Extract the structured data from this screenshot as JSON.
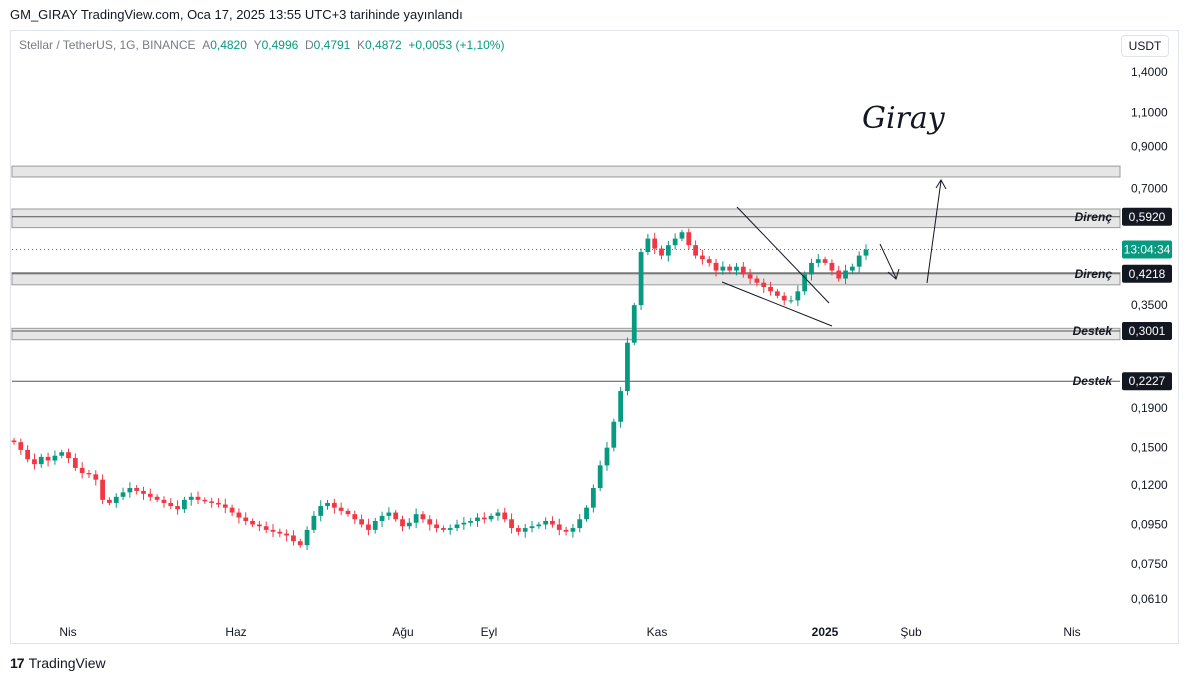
{
  "header": {
    "author": "GM_GIRAY",
    "site": "TradingView.com",
    "published": "Oca 17, 2025 13:55 UTC+3 tarihinde yayınlandı"
  },
  "legend": {
    "symbol": "Stellar / TetherUS, 1G, BINANCE",
    "o_label": "A",
    "o": "0,4820",
    "h_label": "Y",
    "h": "0,4996",
    "l_label": "D",
    "l": "0,4791",
    "c_label": "K",
    "c": "0,4872",
    "change": "+0,0053 (+1,10%)"
  },
  "currency_button": "USDT",
  "footer": {
    "brand": "TradingView",
    "logo": "tradingview-logo-icon"
  },
  "signature": "Giray",
  "colors": {
    "up": "#089981",
    "down": "#f23645",
    "zone": "#e6e6e6",
    "label_bg": "#131722",
    "countdown_bg": "#089981"
  },
  "chart_data": {
    "type": "candlestick",
    "symbol": "Stellar / TetherUS",
    "interval": "1G",
    "exchange": "BINANCE",
    "y_scale": "log",
    "ylim": [
      0.058,
      1.55
    ],
    "y_ticks": [
      {
        "value": 1.4,
        "label": "1,4000"
      },
      {
        "value": 1.1,
        "label": "1,1000"
      },
      {
        "value": 0.9,
        "label": "0,9000"
      },
      {
        "value": 0.7,
        "label": "0,7000"
      },
      {
        "value": 0.35,
        "label": "0,3500"
      },
      {
        "value": 0.19,
        "label": "0,1900"
      },
      {
        "value": 0.15,
        "label": "0,1500"
      },
      {
        "value": 0.12,
        "label": "0,1200"
      },
      {
        "value": 0.095,
        "label": "0,0950"
      },
      {
        "value": 0.075,
        "label": "0,0750"
      },
      {
        "value": 0.061,
        "label": "0,0610"
      }
    ],
    "x_ticks": [
      {
        "label": "Nis",
        "bold": false
      },
      {
        "label": "Haz",
        "bold": false
      },
      {
        "label": "Ağu",
        "bold": false
      },
      {
        "label": "Eyl",
        "bold": false
      },
      {
        "label": "Kas",
        "bold": false
      },
      {
        "label": "2025",
        "bold": true
      },
      {
        "label": "Şub",
        "bold": false
      },
      {
        "label": "Nis",
        "bold": false
      }
    ],
    "close_path": [
      0.155,
      0.148,
      0.14,
      0.136,
      0.142,
      0.139,
      0.143,
      0.146,
      0.141,
      0.133,
      0.129,
      0.128,
      0.124,
      0.11,
      0.108,
      0.112,
      0.115,
      0.118,
      0.116,
      0.114,
      0.112,
      0.11,
      0.108,
      0.106,
      0.104,
      0.11,
      0.112,
      0.11,
      0.109,
      0.108,
      0.107,
      0.105,
      0.102,
      0.099,
      0.097,
      0.095,
      0.094,
      0.092,
      0.091,
      0.09,
      0.089,
      0.086,
      0.084,
      0.092,
      0.1,
      0.106,
      0.108,
      0.105,
      0.103,
      0.101,
      0.098,
      0.095,
      0.092,
      0.097,
      0.1,
      0.102,
      0.098,
      0.094,
      0.096,
      0.101,
      0.098,
      0.095,
      0.093,
      0.092,
      0.093,
      0.095,
      0.096,
      0.097,
      0.099,
      0.098,
      0.1,
      0.102,
      0.098,
      0.093,
      0.091,
      0.093,
      0.094,
      0.095,
      0.097,
      0.095,
      0.092,
      0.091,
      0.093,
      0.098,
      0.105,
      0.118,
      0.135,
      0.15,
      0.175,
      0.21,
      0.28,
      0.35,
      0.48,
      0.52,
      0.49,
      0.47,
      0.5,
      0.52,
      0.54,
      0.5,
      0.47,
      0.46,
      0.45,
      0.43,
      0.44,
      0.43,
      0.44,
      0.42,
      0.41,
      0.4,
      0.39,
      0.38,
      0.37,
      0.36,
      0.36,
      0.38,
      0.42,
      0.45,
      0.46,
      0.45,
      0.43,
      0.41,
      0.43,
      0.44,
      0.47,
      0.487
    ],
    "levels": [
      {
        "label": "Direnç",
        "value": 0.592,
        "value_label": "0,5920",
        "zone_top": 0.62,
        "zone_bottom": 0.555
      },
      {
        "label": "Direnç",
        "value": 0.4218,
        "value_label": "0,4218",
        "zone_top": 0.425,
        "zone_bottom": 0.395
      },
      {
        "label": "Destek",
        "value": 0.3001,
        "value_label": "0,3001",
        "zone_top": 0.305,
        "zone_bottom": 0.285
      },
      {
        "label": "Destek",
        "value": 0.2227,
        "value_label": "0,2227"
      }
    ],
    "top_zone": {
      "top": 0.8,
      "bottom": 0.75
    },
    "current_price": 0.4872,
    "countdown": "13:04:34",
    "grid": false,
    "legend_position": "top-left"
  }
}
